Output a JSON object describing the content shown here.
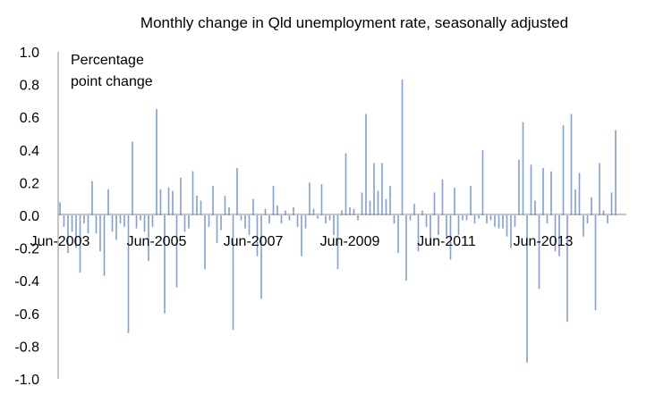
{
  "chart_data": {
    "type": "bar",
    "title": "Monthly change in Qld unemployment rate, seasonally adjusted",
    "annotation": [
      "Percentage",
      "point change"
    ],
    "xlabel": "",
    "ylabel": "",
    "ylim": [
      -1.0,
      1.0
    ],
    "y_ticks": [
      "1.0",
      "0.8",
      "0.6",
      "0.4",
      "0.2",
      "0.0",
      "-0.2",
      "-0.4",
      "-0.6",
      "-0.8",
      "-1.0"
    ],
    "x_tick_labels": [
      "Jun-2003",
      "Jun-2005",
      "Jun-2007",
      "Jun-2009",
      "Jun-2011",
      "Jun-2013"
    ],
    "first_month": "Jun-2003",
    "series": [
      {
        "name": "Monthly change",
        "color": "#7f9fd8",
        "values": [
          0.08,
          -0.07,
          -0.23,
          -0.1,
          -0.2,
          -0.35,
          -0.05,
          -0.11,
          0.21,
          -0.11,
          -0.22,
          -0.37,
          0.16,
          -0.1,
          -0.15,
          -0.05,
          -0.07,
          -0.72,
          0.45,
          -0.08,
          -0.03,
          -0.1,
          -0.28,
          -0.07,
          0.65,
          0.16,
          -0.6,
          0.17,
          0.15,
          -0.44,
          0.23,
          -0.1,
          -0.08,
          0.27,
          0.12,
          0.09,
          -0.33,
          -0.07,
          0.18,
          -0.17,
          -0.09,
          0.12,
          0.05,
          -0.7,
          0.29,
          -0.03,
          -0.08,
          -0.12,
          0.1,
          -0.25,
          -0.51,
          0.04,
          -0.05,
          0.18,
          0.06,
          -0.05,
          0.03,
          -0.03,
          0.05,
          -0.07,
          -0.25,
          -0.08,
          0.2,
          0.04,
          -0.02,
          0.19,
          -0.05,
          -0.03,
          -0.12,
          -0.33,
          0.03,
          0.38,
          0.05,
          0.04,
          -0.03,
          0.14,
          0.62,
          0.09,
          0.32,
          0.15,
          0.32,
          0.1,
          0.18,
          -0.05,
          -0.23,
          0.83,
          -0.4,
          -0.03,
          0.07,
          -0.22,
          0.03,
          -0.07,
          -0.18,
          0.14,
          -0.12,
          0.22,
          -0.13,
          -0.27,
          0.17,
          -0.12,
          -0.03,
          -0.03,
          0.18,
          -0.05,
          -0.02,
          0.4,
          -0.05,
          -0.03,
          -0.07,
          -0.08,
          -0.08,
          -0.13,
          -0.2,
          -0.07,
          0.34,
          0.57,
          -0.9,
          0.31,
          0.09,
          -0.45,
          0.29,
          -0.05,
          0.27,
          -0.22,
          -0.25,
          0.55,
          -0.65,
          0.62,
          0.16,
          0.26,
          -0.13,
          -0.05,
          0.11,
          -0.58,
          0.32,
          0.03,
          -0.05,
          0.14,
          0.52
        ]
      }
    ]
  }
}
